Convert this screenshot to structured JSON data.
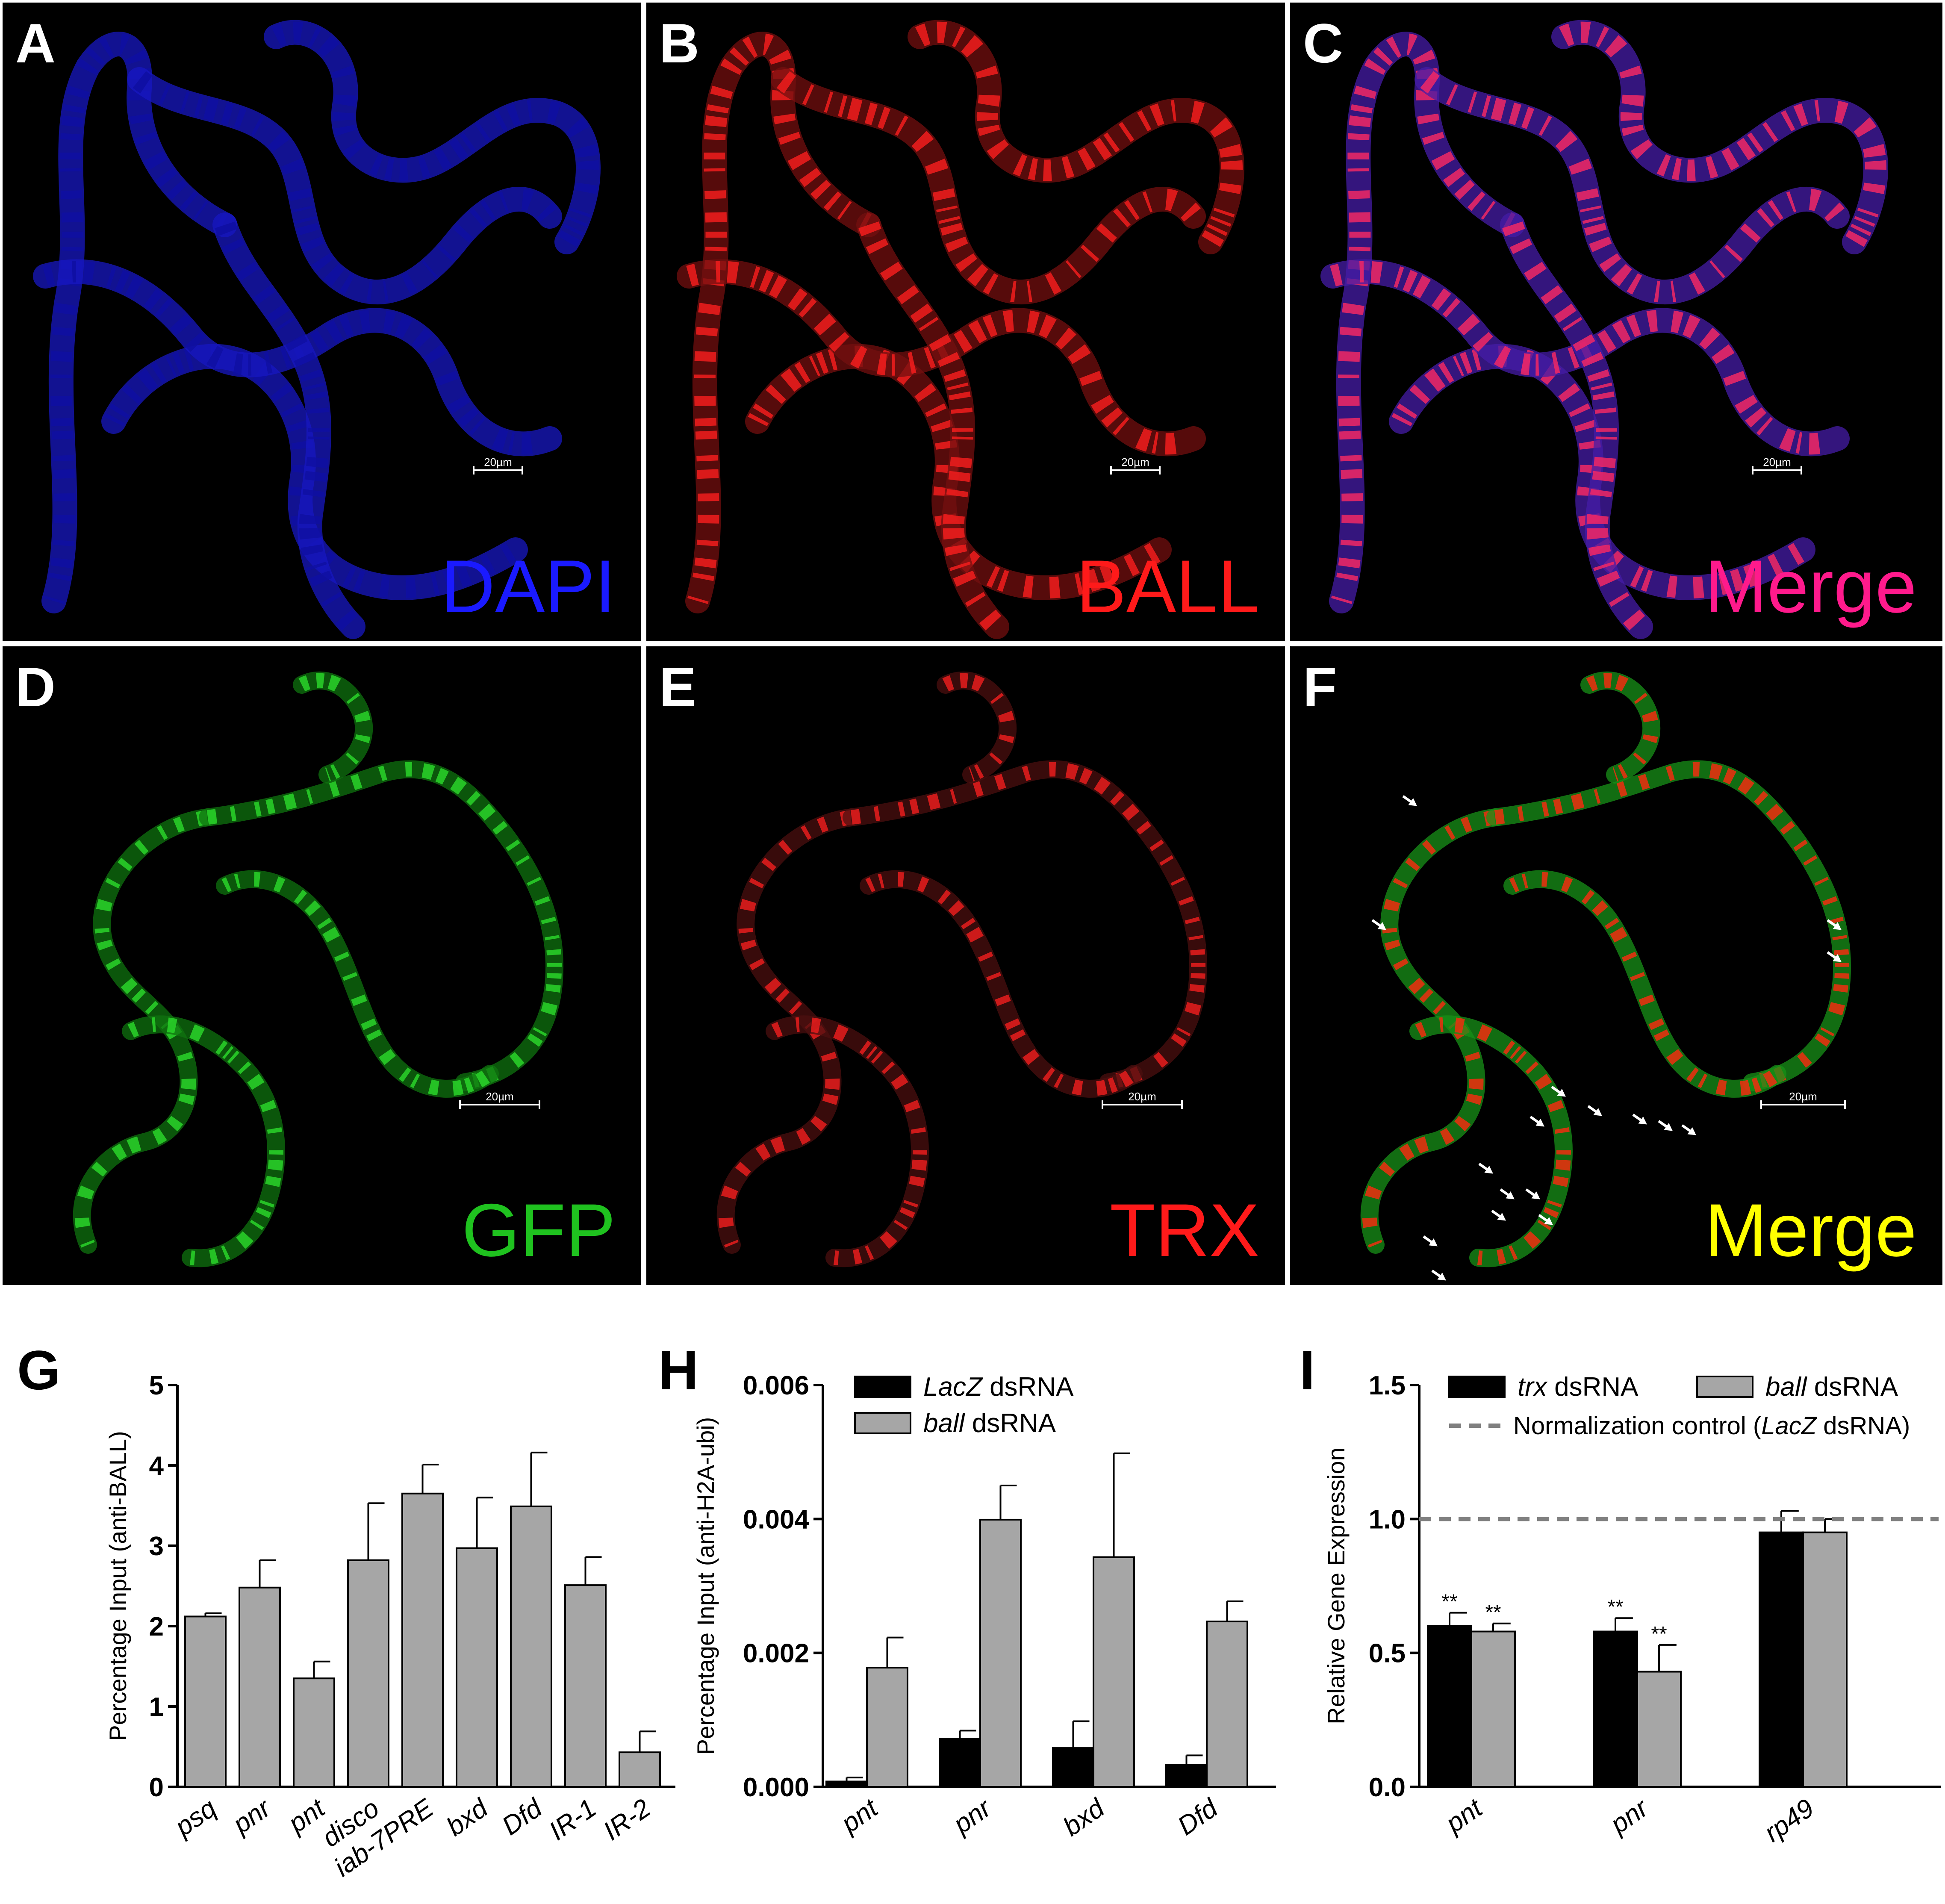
{
  "micrographs": [
    {
      "label": "A",
      "channel": "DAPI",
      "scale": "20µm",
      "color": "#1a1aff",
      "kind": "dapi"
    },
    {
      "label": "B",
      "channel": "BALL",
      "scale": "20µm",
      "color": "#ff1a1a",
      "kind": "ball"
    },
    {
      "label": "C",
      "channel": "Merge",
      "scale": "20µm",
      "color": "#ff1a8c",
      "kind": "mergeAC"
    },
    {
      "label": "D",
      "channel": "GFP",
      "scale": "20µm",
      "color": "#1fc21f",
      "kind": "gfp"
    },
    {
      "label": "E",
      "channel": "TRX",
      "scale": "20µm",
      "color": "#ff1a1a",
      "kind": "trx"
    },
    {
      "label": "F",
      "channel": "Merge",
      "scale": "20µm",
      "color": "#ffff00",
      "kind": "mergeDF"
    }
  ],
  "chart_data": [
    {
      "panel": "G",
      "type": "bar",
      "categories": [
        "psq",
        "pnr",
        "pnt",
        "disco",
        "iab-7PRE",
        "bxd",
        "Dfd",
        "IR-1",
        "IR-2"
      ],
      "series": [
        {
          "values": [
            2.12,
            2.48,
            1.35,
            2.82,
            3.65,
            2.97,
            3.49,
            2.51,
            0.43
          ],
          "errors": [
            0.04,
            0.34,
            0.21,
            0.71,
            0.36,
            0.63,
            0.67,
            0.35,
            0.26
          ],
          "color": "#a6a6a6"
        }
      ],
      "ylabel": "Percentage Input (anti-BALL)",
      "ylim": [
        0,
        5
      ],
      "yticks": [
        "0",
        "1",
        "2",
        "3",
        "4",
        "5"
      ]
    },
    {
      "panel": "H",
      "type": "bar",
      "categories": [
        "pnt",
        "pnr",
        "bxd",
        "Dfd"
      ],
      "series": [
        {
          "name_italic": "LacZ",
          "name_rest": " dsRNA",
          "color": "#000000",
          "values": [
            8e-05,
            0.00072,
            0.00058,
            0.00033
          ],
          "errors": [
            6e-05,
            0.00012,
            0.0004,
            0.00014
          ]
        },
        {
          "name_italic": "ball",
          "name_rest": " dsRNA",
          "color": "#a6a6a6",
          "values": [
            0.00178,
            0.00399,
            0.00343,
            0.00247
          ],
          "errors": [
            0.00045,
            0.00051,
            0.00155,
            0.0003
          ]
        }
      ],
      "ylabel": "Percentage Input (anti-H2A-ubi)",
      "ylim": [
        0,
        0.006
      ],
      "yticks": [
        "0.000",
        "0.002",
        "0.004",
        "0.006"
      ]
    },
    {
      "panel": "I",
      "type": "bar",
      "categories": [
        "pnt",
        "pnr",
        "rp49"
      ],
      "series": [
        {
          "name_italic": "trx",
          "name_rest": " dsRNA",
          "color": "#000000",
          "values": [
            0.6,
            0.58,
            0.95
          ],
          "errors": [
            0.05,
            0.05,
            0.08
          ],
          "sig": [
            "**",
            "**",
            ""
          ]
        },
        {
          "name_italic": "ball",
          "name_rest": " dsRNA",
          "color": "#a6a6a6",
          "values": [
            0.58,
            0.43,
            0.95
          ],
          "errors": [
            0.03,
            0.1,
            0.05
          ],
          "sig": [
            "**",
            "**",
            ""
          ]
        }
      ],
      "reference_line": {
        "value": 1.0,
        "label_pre": "Normalization control (",
        "label_italic": "LacZ",
        "label_post": " dsRNA)",
        "color": "#808080"
      },
      "ylabel": "Relative Gene Expression",
      "ylim": [
        0,
        1.5
      ],
      "yticks": [
        "0.0",
        "0.5",
        "1.0",
        "1.5"
      ]
    }
  ]
}
